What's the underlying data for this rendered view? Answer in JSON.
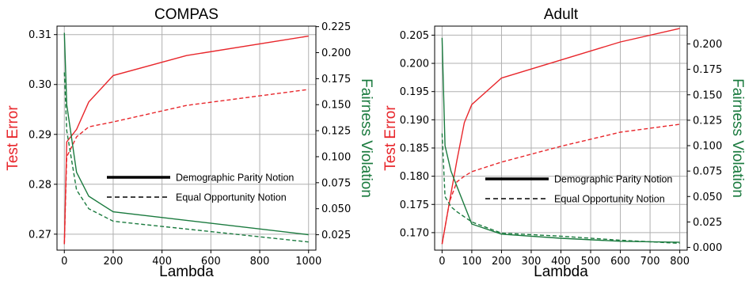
{
  "colors": {
    "error": "#e8262b",
    "fairness": "#1a7a3e",
    "grid": "#b0b0b0"
  },
  "legend": {
    "solid": "Demographic Parity Notion",
    "dashed": "Equal Opportunity Notion"
  },
  "chart_data": [
    {
      "type": "line",
      "title": "COMPAS",
      "xlabel": "Lambda",
      "ylabel_left": "Test Error",
      "ylabel_right": "Fairness Violation",
      "xlim": [
        -30,
        1030
      ],
      "ylim_left": [
        0.2668,
        0.3117
      ],
      "ylim_right": [
        0.0102,
        0.2255
      ],
      "xticks": [
        0,
        200,
        400,
        600,
        800,
        1000
      ],
      "xtick_labels": [
        "0",
        "200",
        "400",
        "600",
        "800",
        "1000"
      ],
      "yticks_left": [
        0.27,
        0.28,
        0.29,
        0.3,
        0.31
      ],
      "ytick_labels_left": [
        "0.27",
        "0.28",
        "0.29",
        "0.30",
        "0.31"
      ],
      "yticks_right": [
        0.025,
        0.05,
        0.075,
        0.1,
        0.125,
        0.15,
        0.175,
        0.2,
        0.225
      ],
      "ytick_labels_right": [
        "0.025",
        "0.050",
        "0.075",
        "0.100",
        "0.125",
        "0.150",
        "0.175",
        "0.200",
        "0.225"
      ],
      "grid": true,
      "legend_position": "center-right",
      "series": [
        {
          "name": "Demographic Parity Notion",
          "metric": "Test Error",
          "axis": "left",
          "x": [
            0,
            10,
            50,
            100,
            200,
            500,
            1000
          ],
          "y": [
            0.268,
            0.2885,
            0.291,
            0.2965,
            0.3018,
            0.3058,
            0.3097
          ]
        },
        {
          "name": "Equal Opportunity Notion",
          "metric": "Test Error",
          "axis": "left",
          "x": [
            0,
            10,
            50,
            100,
            200,
            500,
            1000
          ],
          "y": [
            0.268,
            0.2855,
            0.2895,
            0.2915,
            0.2925,
            0.2958,
            0.299
          ]
        },
        {
          "name": "Demographic Parity Notion",
          "metric": "Fairness Violation",
          "axis": "right",
          "x": [
            0,
            10,
            50,
            100,
            200,
            1000
          ],
          "y": [
            0.219,
            0.15,
            0.085,
            0.062,
            0.047,
            0.025
          ]
        },
        {
          "name": "Equal Opportunity Notion",
          "metric": "Fairness Violation",
          "axis": "right",
          "x": [
            0,
            10,
            50,
            100,
            200,
            1000
          ],
          "y": [
            0.181,
            0.125,
            0.068,
            0.05,
            0.038,
            0.018
          ]
        }
      ]
    },
    {
      "type": "line",
      "title": "Adult",
      "xlabel": "Lambda",
      "ylabel_left": "Test Error",
      "ylabel_right": "Fairness Violation",
      "xlim": [
        -25,
        825
      ],
      "ylim_left": [
        0.1669,
        0.2066
      ],
      "ylim_right": [
        -0.0027,
        0.2175
      ],
      "xticks": [
        0,
        100,
        200,
        300,
        400,
        500,
        600,
        700,
        800
      ],
      "xtick_labels": [
        "0",
        "100",
        "200",
        "300",
        "400",
        "500",
        "600",
        "700",
        "800"
      ],
      "yticks_left": [
        0.17,
        0.175,
        0.18,
        0.185,
        0.19,
        0.195,
        0.2,
        0.205
      ],
      "ytick_labels_left": [
        "0.170",
        "0.175",
        "0.180",
        "0.185",
        "0.190",
        "0.195",
        "0.200",
        "0.205"
      ],
      "yticks_right": [
        0,
        0.025,
        0.05,
        0.075,
        0.1,
        0.125,
        0.15,
        0.175,
        0.2
      ],
      "ytick_labels_right": [
        "0.000",
        "0.025",
        "0.050",
        "0.075",
        "0.100",
        "0.125",
        "0.150",
        "0.175",
        "0.200"
      ],
      "grid": true,
      "legend_position": "center-right",
      "series": [
        {
          "name": "Demographic Parity Notion",
          "metric": "Test Error",
          "axis": "left",
          "x": [
            0,
            25,
            50,
            75,
            100,
            200,
            600,
            800
          ],
          "y": [
            0.168,
            0.1755,
            0.1828,
            0.1895,
            0.1927,
            0.1974,
            0.2038,
            0.2062
          ]
        },
        {
          "name": "Equal Opportunity Notion",
          "metric": "Test Error",
          "axis": "left",
          "x": [
            0,
            25,
            50,
            75,
            100,
            200,
            400,
            600,
            800
          ],
          "y": [
            0.168,
            0.1755,
            0.179,
            0.18,
            0.1808,
            0.1825,
            0.1853,
            0.1878,
            0.1892
          ]
        },
        {
          "name": "Demographic Parity Notion",
          "metric": "Fairness Violation",
          "axis": "right",
          "x": [
            0,
            10,
            30,
            50,
            100,
            200,
            400,
            600,
            800
          ],
          "y": [
            0.206,
            0.1,
            0.075,
            0.06,
            0.023,
            0.013,
            0.009,
            0.006,
            0.005
          ]
        },
        {
          "name": "Equal Opportunity Notion",
          "metric": "Fairness Violation",
          "axis": "right",
          "x": [
            0,
            10,
            30,
            50,
            100,
            200,
            400,
            600,
            800
          ],
          "y": [
            0.112,
            0.05,
            0.04,
            0.035,
            0.025,
            0.014,
            0.011,
            0.007,
            0.004
          ]
        }
      ]
    }
  ]
}
